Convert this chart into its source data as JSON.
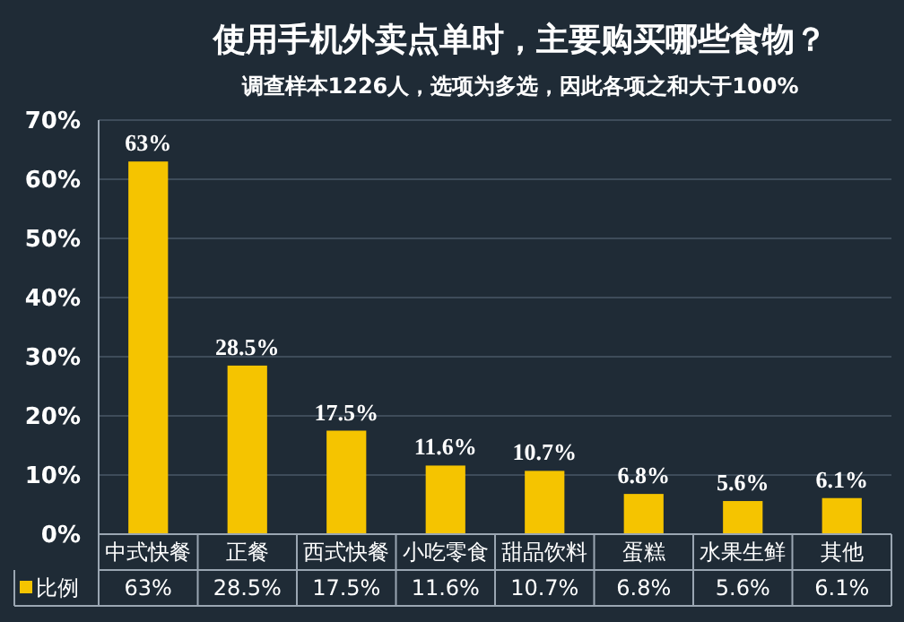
{
  "chart_data": {
    "type": "bar",
    "title": "使用手机外卖点单时，主要购买哪些食物？",
    "subtitle": "调查样本1226人，选项为多选，因此各项之和大于100%",
    "categories": [
      "中式快餐",
      "正餐",
      "西式快餐",
      "小吃零食",
      "甜品饮料",
      "蛋糕",
      "水果生鲜",
      "其他"
    ],
    "series": [
      {
        "name": "比例",
        "color": "#f5c400",
        "values": [
          63,
          28.5,
          17.5,
          11.6,
          10.7,
          6.8,
          5.6,
          6.1
        ],
        "value_labels": [
          "63%",
          "28.5%",
          "17.5%",
          "11.6%",
          "10.7%",
          "6.8%",
          "5.6%",
          "6.1%"
        ]
      }
    ],
    "ylim": [
      0,
      70
    ],
    "yticks": [
      {
        "value": 0,
        "label": "0%"
      },
      {
        "value": 10,
        "label": "10%"
      },
      {
        "value": 20,
        "label": "20%"
      },
      {
        "value": 30,
        "label": "30%"
      },
      {
        "value": 40,
        "label": "40%"
      },
      {
        "value": 50,
        "label": "50%"
      },
      {
        "value": 60,
        "label": "60%"
      },
      {
        "value": 70,
        "label": "70%"
      }
    ],
    "grid": "y",
    "legend": "bottom"
  }
}
